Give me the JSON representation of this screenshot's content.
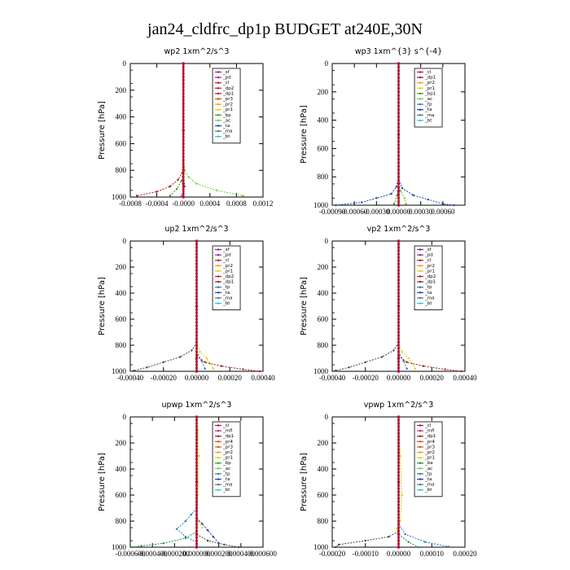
{
  "figure_title": "jan24_cldfrc_dp1p  BUDGET at240E,30N",
  "colors": {
    "sf": "#7b2a8e",
    "pd": "#9b1fa0",
    "cl": "#b0123f",
    "dp2": "#c8102e",
    "dp1": "#9e1b1b",
    "pr3": "#d35400",
    "pr2": "#f39c12",
    "pr1": "#e6d000",
    "bp": "#2e9e1f",
    "ac": "#6bd12f",
    "tp": "#1f7fb4",
    "ta": "#1f3fb4",
    "ma": "#5a6f7e",
    "bt": "#22c7d9",
    "mfl": "#d11f86",
    "pr4": "#e04a1a",
    "ba": "#178f3a"
  },
  "chart_data": [
    {
      "type": "line",
      "title": "wp2   1xm^2/s^3",
      "ylabel": "Pressure [hPa]",
      "xlim": [
        -0.0008,
        0.0012
      ],
      "ylim": [
        1000,
        0
      ],
      "xticks": [
        "-0.0008",
        "-0.0004",
        "-0.0000",
        "0.0004",
        "0.0008",
        "0.0012"
      ],
      "xtick_values": [
        -0.0008,
        -0.0004,
        0,
        0.0004,
        0.0008,
        0.0012
      ],
      "yticks": [
        "0",
        "200",
        "400",
        "600",
        "800",
        "1000"
      ],
      "legend": [
        "_sf",
        "_pd",
        "_cl",
        "_dp2",
        "_dp1",
        "_pr3",
        "_pr2",
        "_pr1",
        "_bp",
        "_ac",
        "_ta",
        "_ma",
        "_bt"
      ],
      "series": [
        {
          "name": "_ac",
          "x": [
            0.0,
            2e-05,
            8e-05,
            0.0002,
            0.0005,
            0.0009
          ],
          "y": [
            700,
            800,
            850,
            900,
            950,
            990
          ]
        },
        {
          "name": "_dp1",
          "x": [
            0.0,
            -2e-05,
            -8e-05,
            -0.0002,
            -0.0004,
            -0.0007
          ],
          "y": [
            750,
            820,
            870,
            920,
            960,
            990
          ]
        },
        {
          "name": "_bp",
          "x": [
            0.0,
            -3e-05,
            -0.0001,
            -0.0002
          ],
          "y": [
            800,
            880,
            940,
            990
          ]
        },
        {
          "name": "_pd",
          "x": [
            0.0,
            2e-05,
            0.0,
            -3e-05
          ],
          "y": [
            850,
            920,
            960,
            995
          ]
        },
        {
          "name": "_sf",
          "x": [
            0.0,
            0.0,
            0.0,
            0.0
          ],
          "y": [
            0,
            500,
            900,
            1000
          ]
        }
      ]
    },
    {
      "type": "line",
      "title": "wp3   1xm^{3} s^{-4}",
      "ylabel": "Pressure [hPa]",
      "xlim": [
        -0.0009,
        0.0009
      ],
      "ylim": [
        1000,
        0
      ],
      "xticks": [
        "-0.00090",
        "-0.00060",
        "-0.00030",
        "0.00000",
        "0.00030",
        "0.00060"
      ],
      "xtick_values": [
        -0.0009,
        -0.0006,
        -0.0003,
        0,
        0.0003,
        0.0006
      ],
      "yticks": [
        "0",
        "200",
        "400",
        "600",
        "800",
        "1000"
      ],
      "legend": [
        "_cl",
        "_dp1",
        "_pr2",
        "_pr1",
        "_bp1",
        "_ac",
        "_tp",
        "_ta",
        "_ma",
        "_bt"
      ],
      "series": [
        {
          "name": "_ta",
          "x": [
            0.0,
            -3e-05,
            -0.0001,
            -0.0003,
            -0.0005,
            -0.00085
          ],
          "y": [
            800,
            870,
            920,
            950,
            980,
            1000
          ]
        },
        {
          "name": "_ta2",
          "x": [
            0.0,
            5e-05,
            0.0002,
            0.0004,
            0.0006,
            0.00075
          ],
          "y": [
            820,
            880,
            930,
            960,
            990,
            1000
          ]
        },
        {
          "name": "_ac",
          "x": [
            0.0,
            3e-05,
            8e-05,
            0.0001
          ],
          "y": [
            850,
            900,
            950,
            990
          ]
        },
        {
          "name": "_bp1",
          "x": [
            0.0,
            -2e-05,
            -6e-05
          ],
          "y": [
            870,
            930,
            990
          ]
        },
        {
          "name": "_cl",
          "x": [
            0.0,
            0.0,
            0.0,
            0.0
          ],
          "y": [
            0,
            500,
            900,
            1000
          ]
        }
      ]
    },
    {
      "type": "line",
      "title": "up2   1xm^2/s^3",
      "ylabel": "Pressure [hPa]",
      "xlim": [
        -0.0004,
        0.0004
      ],
      "ylim": [
        1000,
        0
      ],
      "xticks": [
        "-0.00040",
        "-0.00020",
        "0.00000",
        "0.00020",
        "0.00040"
      ],
      "xtick_values": [
        -0.0004,
        -0.0002,
        0,
        0.0002,
        0.0004
      ],
      "yticks": [
        "0",
        "200",
        "400",
        "600",
        "800",
        "1000"
      ],
      "legend": [
        "_sf",
        "_pd",
        "_cl",
        "_pr2",
        "_pr1",
        "_dp2",
        "_dp1",
        "_tp",
        "_ta",
        "_ma",
        "_bt"
      ],
      "series": [
        {
          "name": "_dp2",
          "x": [
            0.0,
            -3e-05,
            -0.0001,
            -0.0002,
            -0.0003,
            -0.00038
          ],
          "y": [
            780,
            840,
            890,
            930,
            970,
            995
          ]
        },
        {
          "name": "_pr1",
          "x": [
            0.0,
            2e-05,
            6e-05,
            8e-05,
            0.0001
          ],
          "y": [
            780,
            850,
            900,
            940,
            980
          ]
        },
        {
          "name": "_tp",
          "x": [
            0.0,
            3e-05,
            5e-05
          ],
          "y": [
            850,
            920,
            980
          ]
        },
        {
          "name": "_dp1",
          "x": [
            0.0,
            5e-05,
            0.00015,
            0.00028,
            0.00038
          ],
          "y": [
            880,
            930,
            960,
            985,
            1000
          ]
        },
        {
          "name": "_sf",
          "x": [
            0.0,
            0.0,
            0.0,
            0.0
          ],
          "y": [
            0,
            500,
            900,
            1000
          ]
        }
      ]
    },
    {
      "type": "line",
      "title": "vp2   1xm^2/s^3",
      "ylabel": "Pressure [hPa]",
      "xlim": [
        -0.0004,
        0.0004
      ],
      "ylim": [
        1000,
        0
      ],
      "xticks": [
        "-0.00040",
        "-0.00020",
        "0.00000",
        "0.00020",
        "0.00040"
      ],
      "xtick_values": [
        -0.0004,
        -0.0002,
        0,
        0.0002,
        0.0004
      ],
      "yticks": [
        "0",
        "200",
        "400",
        "600",
        "800",
        "1000"
      ],
      "legend": [
        "_sf",
        "_pd",
        "_cl",
        "_pr2",
        "_pr1",
        "_dp2",
        "_dp1",
        "_tp",
        "_ta",
        "_ma",
        "_bt"
      ],
      "series": [
        {
          "name": "_dp2",
          "x": [
            0.0,
            -3e-05,
            -0.0001,
            -0.0002,
            -0.0003,
            -0.00038
          ],
          "y": [
            780,
            840,
            890,
            930,
            970,
            995
          ]
        },
        {
          "name": "_pr1",
          "x": [
            0.0,
            2e-05,
            6e-05,
            8e-05,
            0.0001
          ],
          "y": [
            790,
            850,
            900,
            940,
            980
          ]
        },
        {
          "name": "_tp",
          "x": [
            0.0,
            3e-05,
            5e-05
          ],
          "y": [
            850,
            920,
            980
          ]
        },
        {
          "name": "_dp1",
          "x": [
            0.0,
            5e-05,
            0.00015,
            0.00028,
            0.00038
          ],
          "y": [
            880,
            930,
            960,
            985,
            1000
          ]
        },
        {
          "name": "_sf",
          "x": [
            0.0,
            0.0,
            0.0,
            0.0
          ],
          "y": [
            0,
            500,
            900,
            1000
          ]
        }
      ]
    },
    {
      "type": "line",
      "title": "upwp   1xm^2/s^3",
      "ylabel": "Pressure [hPa]",
      "xlim": [
        -0.0006,
        0.0006
      ],
      "ylim": [
        1000,
        0
      ],
      "xticks": [
        "-0.000600",
        "-0.000400",
        "-0.000200",
        "0.000000",
        "0.000200",
        "0.000400",
        "0.000600"
      ],
      "xtick_values": [
        -0.0006,
        -0.0004,
        -0.0002,
        0,
        0.0002,
        0.0004,
        0.0006
      ],
      "yticks": [
        "0",
        "200",
        "400",
        "600",
        "800",
        "1000"
      ],
      "legend": [
        "_cl",
        "_mfl",
        "_dp1",
        "_pr4",
        "_pr3",
        "_pr2",
        "_pr1",
        "_bp",
        "_ac",
        "_tp",
        "_ta",
        "_ma",
        "_bt"
      ],
      "series": [
        {
          "name": "_pr1",
          "x": [
            0.0,
            1e-05,
            2e-05,
            1e-05,
            0.0,
            2e-05,
            5e-05
          ],
          "y": [
            0,
            100,
            300,
            600,
            750,
            800,
            850
          ]
        },
        {
          "name": "_tp",
          "x": [
            0.0,
            -5e-05,
            -0.0001,
            -0.00018,
            -0.0001,
            0.0
          ],
          "y": [
            700,
            750,
            800,
            860,
            920,
            960
          ]
        },
        {
          "name": "_ta",
          "x": [
            0.0,
            5e-05,
            0.0001,
            0.00015,
            0.0002
          ],
          "y": [
            780,
            820,
            870,
            920,
            970
          ]
        },
        {
          "name": "_ba",
          "x": [
            0.0,
            -0.0001,
            -0.0003,
            -0.0005,
            -0.00058
          ],
          "y": [
            880,
            930,
            970,
            990,
            1000
          ]
        },
        {
          "name": "_pr2",
          "x": [
            0.0,
            0.0001,
            0.00025,
            0.00038
          ],
          "y": [
            900,
            950,
            980,
            1000
          ]
        },
        {
          "name": "_cl",
          "x": [
            0.0,
            0.0,
            0.0,
            0.0
          ],
          "y": [
            0,
            500,
            900,
            1000
          ]
        }
      ]
    },
    {
      "type": "line",
      "title": "vpwp   1xm^2/s^3",
      "ylabel": "Pressure [hPa]",
      "xlim": [
        -0.0002,
        0.0002
      ],
      "ylim": [
        1000,
        0
      ],
      "xticks": [
        "-0.00020",
        "-0.00010",
        "0.00000",
        "0.00010",
        "0.00020"
      ],
      "xtick_values": [
        -0.0002,
        -0.0001,
        0,
        0.0001,
        0.0002
      ],
      "yticks": [
        "0",
        "200",
        "400",
        "600",
        "800",
        "1000"
      ],
      "legend": [
        "_cl",
        "_mfl",
        "_dp1",
        "_pr4",
        "_pr3",
        "_pr2",
        "_pr1",
        "_ba",
        "_ac",
        "_tp",
        "_ta",
        "_ma",
        "_bt"
      ],
      "series": [
        {
          "name": "_pr1",
          "x": [
            0.0,
            5e-06,
            1e-05,
            5e-06,
            -5e-06,
            0.0
          ],
          "y": [
            0,
            300,
            600,
            800,
            860,
            900
          ]
        },
        {
          "name": "_pr2",
          "x": [
            0.0,
            -3e-05,
            -0.0001,
            -0.00018,
            -0.00019
          ],
          "y": [
            880,
            920,
            950,
            980,
            1000
          ]
        },
        {
          "name": "_tp",
          "x": [
            0.0,
            2e-05,
            8e-05,
            0.00015
          ],
          "y": [
            820,
            900,
            960,
            995
          ]
        },
        {
          "name": "_ba",
          "x": [
            0.0,
            3e-05,
            6e-05
          ],
          "y": [
            900,
            960,
            1000
          ]
        },
        {
          "name": "_cl",
          "x": [
            0.0,
            0.0,
            0.0,
            0.0
          ],
          "y": [
            0,
            500,
            900,
            1000
          ]
        }
      ]
    }
  ]
}
